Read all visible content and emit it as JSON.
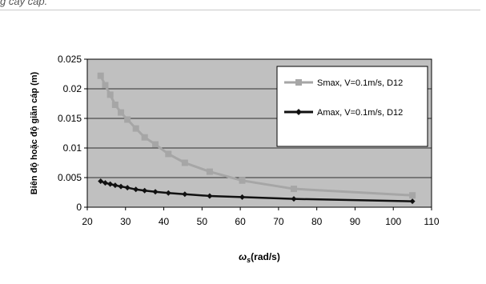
{
  "caption_fragment": "g cáy cáp.",
  "colors": {
    "plot_background": "#c0c0c0",
    "series_smax": "#a6a6a6",
    "series_amax": "#111111",
    "gridline": "#000000"
  },
  "chart_data": {
    "type": "line",
    "title": "",
    "xlabel_main": "ω",
    "xlabel_sub": "s",
    "xlabel_rest": "(rad/s)",
    "ylabel": "Biên độ hoặc độ giãn cáp (m)",
    "xlim": [
      20,
      110
    ],
    "ylim": [
      0,
      0.025
    ],
    "grid": "horizontal",
    "legend_position": "right",
    "x_tick_labels": [
      "20",
      "30",
      "40",
      "50",
      "60",
      "70",
      "80",
      "90",
      "100",
      "110"
    ],
    "y_tick_labels": [
      "0",
      "0.005",
      "0.01",
      "0.015",
      "0.02",
      "0.025"
    ],
    "series": [
      {
        "name": "Smax, V=0.1m/s, D12",
        "marker": "square",
        "x": [
          23.5,
          24.7,
          26.0,
          27.3,
          28.8,
          30.5,
          32.7,
          35.0,
          37.8,
          41.2,
          45.5,
          52.0,
          60.5,
          74.0,
          105.0
        ],
        "y": [
          0.0222,
          0.0206,
          0.019,
          0.0173,
          0.016,
          0.0148,
          0.0133,
          0.0118,
          0.0106,
          0.009,
          0.0075,
          0.006,
          0.0045,
          0.0031,
          0.002
        ]
      },
      {
        "name": "Amax, V=0.1m/s, D12",
        "marker": "diamond",
        "x": [
          23.5,
          24.7,
          26.0,
          27.3,
          28.8,
          30.5,
          32.7,
          35.0,
          37.8,
          41.2,
          45.5,
          52.0,
          60.5,
          74.0,
          105.0
        ],
        "y": [
          0.0044,
          0.0041,
          0.0039,
          0.0037,
          0.0035,
          0.0033,
          0.003,
          0.0028,
          0.0026,
          0.0024,
          0.0022,
          0.0019,
          0.0017,
          0.0014,
          0.001
        ]
      }
    ]
  }
}
